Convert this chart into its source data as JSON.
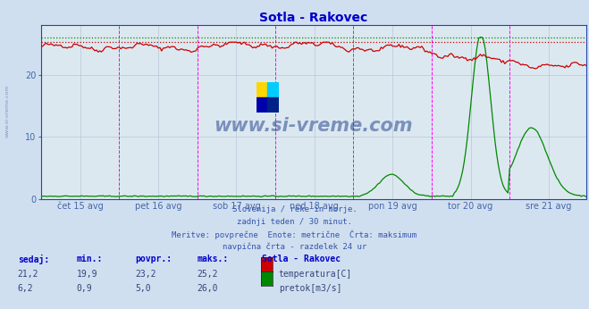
{
  "title": "Sotla - Rakovec",
  "title_color": "#0000cc",
  "bg_color": "#d0dff0",
  "plot_bg_color": "#dce8f0",
  "grid_color": "#b8c8d8",
  "axis_color": "#4466aa",
  "border_color": "#2244aa",
  "x_tick_labels": [
    "čet 15 avg",
    "pet 16 avg",
    "sob 17 avg",
    "ned 18 avg",
    "pon 19 avg",
    "tor 20 avg",
    "sre 21 avg"
  ],
  "y_ticks": [
    0,
    10,
    20
  ],
  "y_max": 28,
  "y_min": 0,
  "n_points": 336,
  "temp_color": "#cc0000",
  "flow_color": "#008800",
  "temp_max_line": 25.2,
  "flow_max_line": 26.0,
  "subtitle_lines": [
    "Slovenija / reke in morje.",
    "zadnji teden / 30 minut.",
    "Meritve: povprečne  Enote: metrične  Črta: maksimum",
    "navpična črta - razdelek 24 ur"
  ],
  "table_headers": [
    "sedaj:",
    "min.:",
    "povpr.:",
    "maks.:"
  ],
  "table_header_color": "#0000cc",
  "table_value_color": "#334477",
  "table_rows": [
    [
      "21,2",
      "19,9",
      "23,2",
      "25,2",
      "#cc0000",
      "temperatura[C]"
    ],
    [
      "6,2",
      "0,9",
      "5,0",
      "26,0",
      "#008800",
      "pretok[m3/s]"
    ]
  ],
  "station_label": "Sotla - Rakovec",
  "watermark": "www.si-vreme.com",
  "watermark_color": "#1a3a8a",
  "left_label": "www.si-vreme.com",
  "logo_colors": [
    "#FFD700",
    "#00CCFF",
    "#0000AA",
    "#002288"
  ]
}
